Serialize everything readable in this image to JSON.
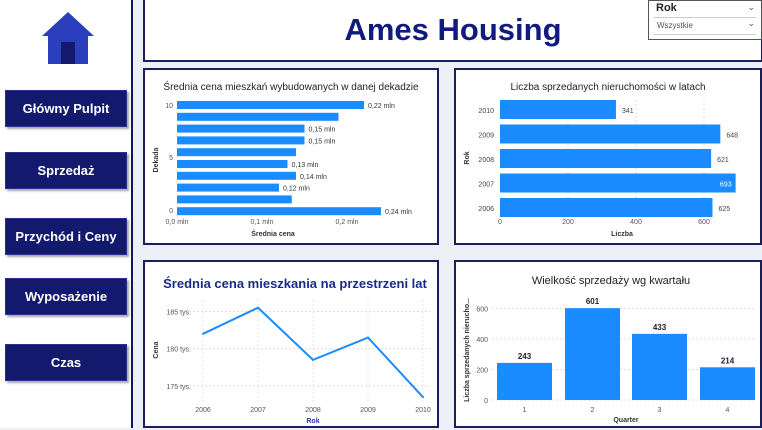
{
  "colors": {
    "navy": "#131a6e",
    "bar": "#1a8cff",
    "title": "#111a7d",
    "line": "#1a8cff"
  },
  "header": {
    "title": "Ames Housing"
  },
  "slicer": {
    "label": "Rok",
    "selected": "Wszystkie"
  },
  "sidebar": {
    "home_icon": "house-icon",
    "items": [
      {
        "label": "Główny Pulpit"
      },
      {
        "label": "Sprzedaż"
      },
      {
        "label": "Przychód i Ceny"
      },
      {
        "label": "Wyposażenie"
      },
      {
        "label": "Czas"
      }
    ]
  },
  "chart_data": [
    {
      "type": "bar",
      "orientation": "horizontal",
      "title": "Średnia cena mieszkań wybudowanych w danej dekadzie",
      "xlabel": "Średnia cena",
      "ylabel": "Dekada",
      "y_ticks": [
        "10",
        "5",
        "0"
      ],
      "x_ticks": [
        "0,0 mln",
        "0,1 mln",
        "0,2 mln"
      ],
      "xlim": [
        0,
        0.3
      ],
      "values": [
        0.22,
        0.19,
        0.15,
        0.15,
        0.14,
        0.13,
        0.14,
        0.12,
        0.135,
        0.24
      ],
      "data_labels": [
        "0,22 mln",
        "",
        "0,15 mln",
        "0,15 mln",
        "",
        "0,13 mln",
        "0,14 mln",
        "0,12 mln",
        "",
        "0,24 mln"
      ]
    },
    {
      "type": "bar",
      "orientation": "horizontal",
      "title": "Liczba sprzedanych nieruchomości w latach",
      "xlabel": "Liczba",
      "ylabel": "Rok",
      "categories": [
        "2010",
        "2009",
        "2008",
        "2007",
        "2006"
      ],
      "values": [
        341,
        648,
        621,
        693,
        625
      ],
      "x_ticks": [
        "0",
        "200",
        "400",
        "600"
      ],
      "xlim": [
        0,
        700
      ]
    },
    {
      "type": "line",
      "title": "Średnia cena mieszkania na przestrzeni lat",
      "xlabel": "Rok",
      "ylabel": "Cena",
      "x": [
        "2006",
        "2007",
        "2008",
        "2009",
        "2010"
      ],
      "values": [
        182,
        185.5,
        178.5,
        181.5,
        173.5
      ],
      "y_ticks": [
        "185 tys.",
        "180 tys.",
        "175 tys."
      ],
      "ylim": [
        173,
        187
      ]
    },
    {
      "type": "bar",
      "title": "Wielkość sprzedaży wg kwartału",
      "xlabel": "Quarter",
      "ylabel": "Liczba sprzedanych nierucho...",
      "categories": [
        "1",
        "2",
        "3",
        "4"
      ],
      "values": [
        243,
        601,
        433,
        214
      ],
      "y_ticks": [
        "0",
        "200",
        "400",
        "600"
      ],
      "ylim": [
        0,
        640
      ]
    }
  ]
}
